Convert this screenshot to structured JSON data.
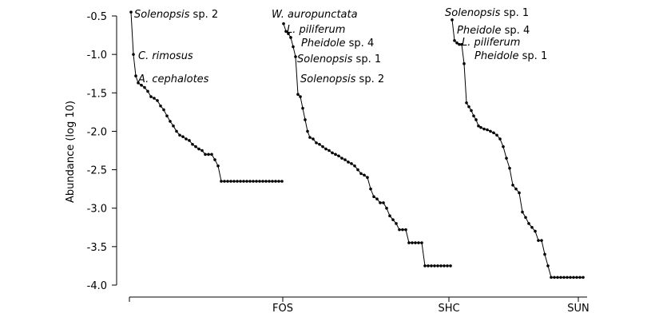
{
  "chart_data": {
    "type": "scatter-line",
    "y_label": "Abundance (log 10)",
    "ylim": [
      -0.5,
      -4.0
    ],
    "yticks": [
      -0.5,
      {
        "value": -1.0,
        "label": "-1.0"
      },
      -1.5,
      {
        "value": -2.0,
        "label": "-2.0"
      },
      -2.5,
      {
        "value": -3.0,
        "label": "-3.0"
      },
      -3.5,
      {
        "value": -4.0,
        "label": "-4.0"
      }
    ],
    "xlim": [
      0,
      573
    ],
    "xticks": [
      0,
      {
        "value": 192,
        "label": "FOS"
      },
      {
        "value": 400,
        "label": "SHC"
      },
      {
        "value": 562,
        "label": "SUN"
      }
    ],
    "color": "#000000",
    "series": [
      {
        "name": "FOS",
        "x": [
          2,
          5,
          8,
          11,
          15,
          19,
          23,
          27,
          31,
          35,
          39,
          43,
          47,
          51,
          55,
          59,
          63,
          67,
          71,
          75,
          79,
          83,
          87,
          91,
          95,
          99,
          103,
          107,
          111,
          115,
          119,
          123,
          127,
          131,
          135,
          139,
          143,
          147,
          151,
          155,
          159,
          163,
          167,
          171,
          175,
          179,
          183,
          187,
          191
        ],
        "values": [
          -0.45,
          -1.0,
          -1.28,
          -1.37,
          -1.4,
          -1.43,
          -1.48,
          -1.55,
          -1.57,
          -1.6,
          -1.67,
          -1.72,
          -1.8,
          -1.87,
          -1.93,
          -2.0,
          -2.05,
          -2.07,
          -2.1,
          -2.12,
          -2.17,
          -2.2,
          -2.23,
          -2.25,
          -2.3,
          -2.3,
          -2.3,
          -2.37,
          -2.45,
          -2.65,
          -2.65,
          -2.65,
          -2.65,
          -2.65,
          -2.65,
          -2.65,
          -2.65,
          -2.65,
          -2.65,
          -2.65,
          -2.65,
          -2.65,
          -2.65,
          -2.65,
          -2.65,
          -2.65,
          -2.65,
          -2.65,
          -2.65
        ]
      },
      {
        "name": "SHC",
        "x": [
          193,
          196,
          199,
          202,
          205,
          208,
          211,
          214,
          217,
          220,
          223,
          226,
          230,
          234,
          238,
          242,
          246,
          250,
          254,
          258,
          262,
          266,
          270,
          274,
          278,
          282,
          286,
          290,
          294,
          298,
          302,
          306,
          310,
          314,
          318,
          322,
          326,
          330,
          334,
          338,
          342,
          346,
          350,
          354,
          358,
          362,
          366,
          370,
          374,
          378,
          382,
          386,
          390,
          394,
          398,
          402
        ],
        "values": [
          -0.6,
          -0.7,
          -0.73,
          -0.78,
          -0.9,
          -1.03,
          -1.52,
          -1.55,
          -1.7,
          -1.85,
          -2.0,
          -2.08,
          -2.1,
          -2.15,
          -2.17,
          -2.2,
          -2.23,
          -2.25,
          -2.28,
          -2.3,
          -2.32,
          -2.35,
          -2.37,
          -2.4,
          -2.42,
          -2.45,
          -2.5,
          -2.55,
          -2.57,
          -2.6,
          -2.75,
          -2.85,
          -2.88,
          -2.93,
          -2.93,
          -3.0,
          -3.1,
          -3.15,
          -3.2,
          -3.28,
          -3.28,
          -3.28,
          -3.45,
          -3.45,
          -3.45,
          -3.45,
          -3.45,
          -3.75,
          -3.75,
          -3.75,
          -3.75,
          -3.75,
          -3.75,
          -3.75,
          -3.75,
          -3.75
        ]
      },
      {
        "name": "SUN",
        "x": [
          404,
          407,
          410,
          413,
          416,
          419,
          422,
          425,
          428,
          431,
          434,
          437,
          440,
          444,
          448,
          452,
          456,
          460,
          464,
          468,
          472,
          476,
          480,
          484,
          488,
          492,
          496,
          500,
          504,
          508,
          512,
          516,
          520,
          524,
          528,
          532,
          536,
          540,
          544,
          548,
          552,
          556,
          560,
          564,
          568
        ],
        "values": [
          -0.55,
          -0.82,
          -0.85,
          -0.87,
          -0.87,
          -1.12,
          -1.63,
          -1.68,
          -1.73,
          -1.8,
          -1.85,
          -1.93,
          -1.95,
          -1.97,
          -1.98,
          -2.0,
          -2.02,
          -2.05,
          -2.1,
          -2.2,
          -2.35,
          -2.48,
          -2.7,
          -2.75,
          -2.8,
          -3.05,
          -3.12,
          -3.2,
          -3.25,
          -3.3,
          -3.42,
          -3.42,
          -3.6,
          -3.75,
          -3.9,
          -3.9,
          -3.9,
          -3.9,
          -3.9,
          -3.9,
          -3.9,
          -3.9,
          -3.9,
          -3.9,
          -3.9
        ]
      }
    ],
    "annotations": [
      "Solenopsis sp. 2",
      "C. rimosus",
      "A. cephalotes",
      "W. auropunctata",
      "L. piliferum",
      "Pheidole sp. 4",
      "Solenopsis sp. 1",
      "Solenopsis sp. 2",
      "Solenopsis sp. 1",
      "Pheidole sp. 4",
      "L. piliferum",
      "Pheidole sp. 1"
    ]
  }
}
